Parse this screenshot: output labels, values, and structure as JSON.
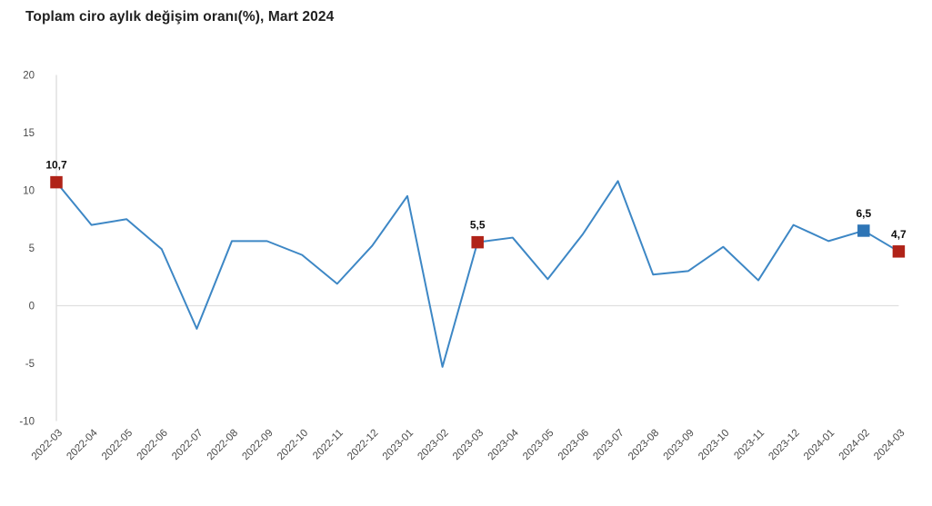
{
  "title": "Toplam ciro aylık değişim oranı(%), Mart 2024",
  "colors": {
    "line": "#3d87c5",
    "marker_red": "#b02318",
    "marker_blue": "#2e75b6",
    "axis_line": "#d9d9d9",
    "zero_line": "#e0e0e0",
    "tick_text": "#4a4a4a",
    "point_label_text": "#0d0d0d"
  },
  "chart_data": {
    "type": "line",
    "title": "Toplam ciro aylık değişim oranı(%), Mart 2024",
    "xlabel": "",
    "ylabel": "",
    "ylim": [
      -10,
      20
    ],
    "yticks": [
      20,
      15,
      10,
      5,
      0,
      -5,
      -10
    ],
    "grid": "zero-line-only",
    "legend_position": "none",
    "categories": [
      "2022-03",
      "2022-04",
      "2022-05",
      "2022-06",
      "2022-07",
      "2022-08",
      "2022-09",
      "2022-10",
      "2022-11",
      "2022-12",
      "2023-01",
      "2023-02",
      "2023-03",
      "2023-04",
      "2023-05",
      "2023-06",
      "2023-07",
      "2023-08",
      "2023-09",
      "2023-10",
      "2023-11",
      "2023-12",
      "2024-01",
      "2024-02",
      "2024-03"
    ],
    "values": [
      10.7,
      7.0,
      7.5,
      4.9,
      -2.0,
      5.6,
      5.6,
      4.4,
      1.9,
      5.2,
      9.5,
      -5.3,
      5.5,
      5.9,
      2.3,
      6.2,
      10.8,
      2.7,
      3.0,
      5.1,
      2.2,
      7.0,
      5.6,
      6.5,
      4.7
    ],
    "highlighted_points": [
      {
        "category": "2022-03",
        "value": 10.7,
        "label": "10,7",
        "color": "#b02318"
      },
      {
        "category": "2023-03",
        "value": 5.5,
        "label": "5,5",
        "color": "#b02318"
      },
      {
        "category": "2024-02",
        "value": 6.5,
        "label": "6,5",
        "color": "#2e75b6"
      },
      {
        "category": "2024-03",
        "value": 4.7,
        "label": "4,7",
        "color": "#b02318"
      }
    ]
  }
}
